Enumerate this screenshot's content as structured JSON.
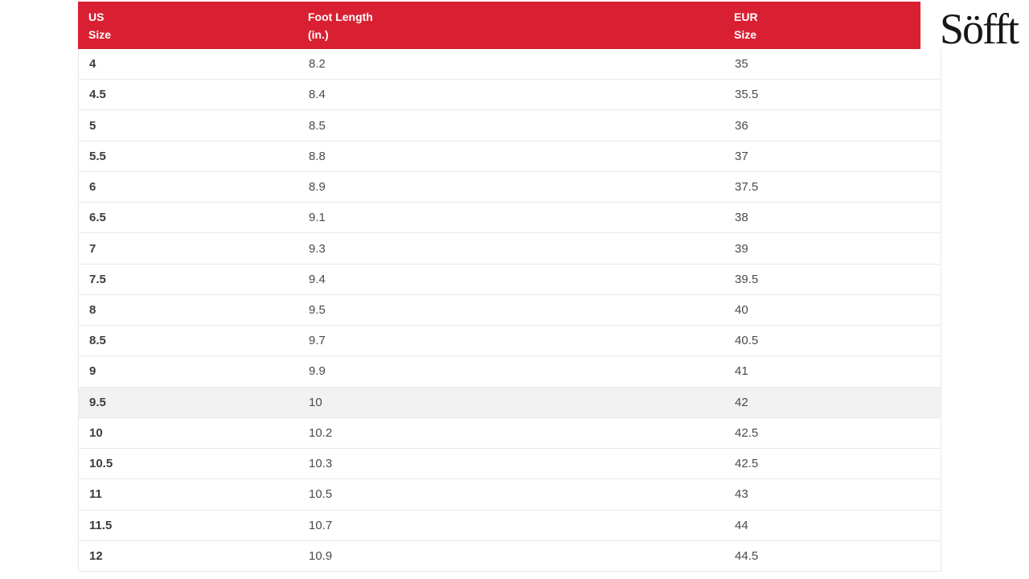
{
  "brand": {
    "logo_text": "Söfft"
  },
  "colors": {
    "header_bg": "#d92033",
    "header_text": "#ffffff",
    "highlight_bg": "#f2f2f2",
    "border_color": "#e9e9e9",
    "cell_text": "#4a4a4a",
    "cell_text_bold": "#3c3c3c",
    "logo_color": "#17171a"
  },
  "table": {
    "columns": [
      {
        "id": "us",
        "label_lines": [
          "US",
          "Size"
        ]
      },
      {
        "id": "foot",
        "label_lines": [
          "Foot Length",
          "(in.)"
        ]
      },
      {
        "id": "eur",
        "label_lines": [
          "EUR",
          "Size"
        ]
      }
    ],
    "highlighted_us_size": "9.5",
    "rows": [
      {
        "us": "4",
        "foot_length_in": "8.2",
        "eur": "35"
      },
      {
        "us": "4.5",
        "foot_length_in": "8.4",
        "eur": "35.5"
      },
      {
        "us": "5",
        "foot_length_in": "8.5",
        "eur": "36"
      },
      {
        "us": "5.5",
        "foot_length_in": "8.8",
        "eur": "37"
      },
      {
        "us": "6",
        "foot_length_in": "8.9",
        "eur": "37.5"
      },
      {
        "us": "6.5",
        "foot_length_in": "9.1",
        "eur": "38"
      },
      {
        "us": "7",
        "foot_length_in": "9.3",
        "eur": "39"
      },
      {
        "us": "7.5",
        "foot_length_in": "9.4",
        "eur": "39.5"
      },
      {
        "us": "8",
        "foot_length_in": "9.5",
        "eur": "40"
      },
      {
        "us": "8.5",
        "foot_length_in": "9.7",
        "eur": "40.5"
      },
      {
        "us": "9",
        "foot_length_in": "9.9",
        "eur": "41"
      },
      {
        "us": "9.5",
        "foot_length_in": "10",
        "eur": "42"
      },
      {
        "us": "10",
        "foot_length_in": "10.2",
        "eur": "42.5"
      },
      {
        "us": "10.5",
        "foot_length_in": "10.3",
        "eur": "42.5"
      },
      {
        "us": "11",
        "foot_length_in": "10.5",
        "eur": "43"
      },
      {
        "us": "11.5",
        "foot_length_in": "10.7",
        "eur": "44"
      },
      {
        "us": "12",
        "foot_length_in": "10.9",
        "eur": "44.5"
      }
    ]
  }
}
